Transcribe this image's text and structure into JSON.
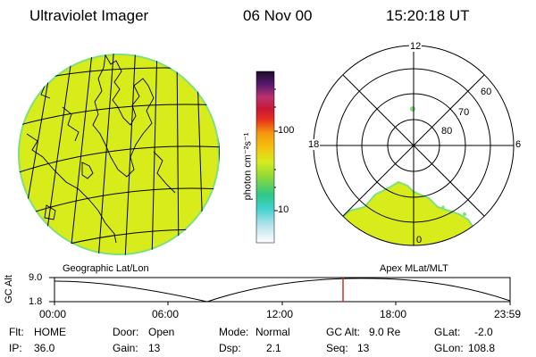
{
  "header": {
    "instrument": "Ultraviolet Imager",
    "date": "06 Nov 00",
    "time": "15:20:18 UT"
  },
  "colorbar": {
    "unit_label": "photon cm⁻²s⁻¹",
    "ticks": [
      "100",
      "10"
    ]
  },
  "polar_plot": {
    "mlt_labels": [
      "12",
      "18",
      "6",
      "0"
    ],
    "lat_labels": [
      "60",
      "70",
      "80"
    ]
  },
  "map_labels": {
    "left": "Geographic Lat/Lon",
    "right": "Apex MLat/MLT"
  },
  "gc_alt_plot": {
    "ylabel": "GC Alt",
    "yticks": [
      "9.0",
      "1.8"
    ],
    "xticks": [
      "00:00",
      "06:00",
      "12:00",
      "18:00",
      "23:59"
    ],
    "current_time_marker": "15:20"
  },
  "status": {
    "flt": {
      "label": "Flt:",
      "value": "HOME"
    },
    "ip": {
      "label": "IP:",
      "value": "36.0"
    },
    "door": {
      "label": "Door:",
      "value": "Open"
    },
    "gain": {
      "label": "Gain:",
      "value": "13"
    },
    "mode": {
      "label": "Mode:",
      "value": "Normal"
    },
    "dsp": {
      "label": "Dsp:",
      "value": "2.1"
    },
    "gcalt": {
      "label": "GC Alt:",
      "value": "9.0 Re"
    },
    "seq": {
      "label": "Seq:",
      "value": "13"
    },
    "glat": {
      "label": "GLat:",
      "value": "-2.0"
    },
    "glon": {
      "label": "GLon:",
      "value": "108.8"
    }
  },
  "colors": {
    "aurora_fill": "#d8ec1c",
    "aurora_edge": "#7fe07a",
    "marker": "#c83232"
  }
}
